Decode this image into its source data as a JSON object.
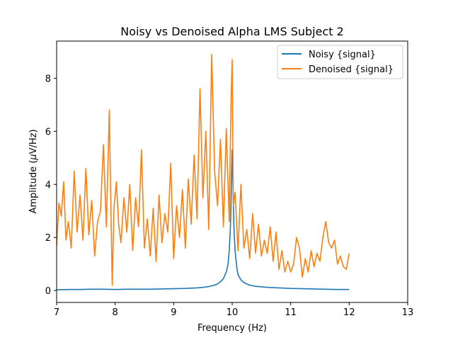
{
  "chart_data": {
    "type": "line",
    "title": "Noisy vs Denoised Alpha LMS Subject 2",
    "xlabel": "Frequency (Hz)",
    "ylabel_prefix": "Amplitude (",
    "ylabel_mu": "μ",
    "ylabel_suffix": "V/Hz)",
    "xlim": [
      7,
      13
    ],
    "ylim": [
      -0.45,
      9.4
    ],
    "xticks": [
      "7",
      "8",
      "9",
      "10",
      "11",
      "12",
      "13"
    ],
    "yticks": [
      "0",
      "2",
      "4",
      "6",
      "8"
    ],
    "legend_position": "upper-right",
    "grid": false,
    "series": [
      {
        "name": "Noisy {signal}",
        "color": "#1f77b4",
        "x": [
          7.0,
          7.2,
          7.4,
          7.6,
          7.8,
          8.0,
          8.2,
          8.4,
          8.6,
          8.8,
          9.0,
          9.2,
          9.4,
          9.5,
          9.6,
          9.7,
          9.75,
          9.8,
          9.85,
          9.9,
          9.93,
          9.95,
          9.97,
          9.98,
          9.99,
          10.0,
          10.01,
          10.02,
          10.03,
          10.05,
          10.08,
          10.1,
          10.15,
          10.2,
          10.3,
          10.4,
          10.6,
          10.8,
          11.0,
          11.2,
          11.4,
          11.6,
          11.8,
          12.0
        ],
        "values": [
          0.03,
          0.04,
          0.04,
          0.05,
          0.05,
          0.04,
          0.05,
          0.05,
          0.05,
          0.06,
          0.07,
          0.08,
          0.1,
          0.12,
          0.15,
          0.2,
          0.25,
          0.33,
          0.45,
          0.7,
          1.0,
          1.5,
          2.4,
          3.3,
          4.3,
          5.3,
          4.3,
          3.3,
          2.4,
          1.5,
          0.85,
          0.6,
          0.4,
          0.3,
          0.2,
          0.16,
          0.12,
          0.1,
          0.08,
          0.07,
          0.06,
          0.05,
          0.04,
          0.04
        ]
      },
      {
        "name": "Denoised {signal}",
        "color": "#ff7f0e",
        "x": [
          7.0,
          7.04,
          7.08,
          7.12,
          7.16,
          7.2,
          7.25,
          7.3,
          7.35,
          7.4,
          7.45,
          7.5,
          7.55,
          7.6,
          7.65,
          7.7,
          7.75,
          7.8,
          7.85,
          7.9,
          7.95,
          7.98,
          8.02,
          8.06,
          8.1,
          8.15,
          8.2,
          8.25,
          8.3,
          8.35,
          8.4,
          8.45,
          8.5,
          8.55,
          8.6,
          8.65,
          8.7,
          8.75,
          8.8,
          8.85,
          8.9,
          8.95,
          9.0,
          9.05,
          9.1,
          9.15,
          9.2,
          9.25,
          9.3,
          9.35,
          9.4,
          9.45,
          9.5,
          9.55,
          9.6,
          9.65,
          9.7,
          9.75,
          9.8,
          9.85,
          9.9,
          9.95,
          9.98,
          10.0,
          10.02,
          10.05,
          10.1,
          10.15,
          10.2,
          10.25,
          10.3,
          10.35,
          10.4,
          10.45,
          10.5,
          10.55,
          10.6,
          10.65,
          10.7,
          10.75,
          10.8,
          10.85,
          10.9,
          10.95,
          11.0,
          11.05,
          11.1,
          11.15,
          11.2,
          11.25,
          11.3,
          11.35,
          11.4,
          11.45,
          11.5,
          11.55,
          11.6,
          11.65,
          11.7,
          11.75,
          11.8,
          11.85,
          11.9,
          11.95,
          12.0
        ],
        "values": [
          1.7,
          3.3,
          2.8,
          4.1,
          1.9,
          2.6,
          1.6,
          4.5,
          2.2,
          3.6,
          1.9,
          4.6,
          2.1,
          3.4,
          1.3,
          2.6,
          3.0,
          5.5,
          2.4,
          6.8,
          0.2,
          3.1,
          4.1,
          2.5,
          1.8,
          3.5,
          2.2,
          4.0,
          1.5,
          3.5,
          2.4,
          5.3,
          1.6,
          2.7,
          1.3,
          3.1,
          1.1,
          3.6,
          1.8,
          2.9,
          2.2,
          4.8,
          1.2,
          3.2,
          2.0,
          3.8,
          1.6,
          4.2,
          2.5,
          5.1,
          2.7,
          7.6,
          3.5,
          6.0,
          2.3,
          8.9,
          4.5,
          3.2,
          5.7,
          2.4,
          6.1,
          2.6,
          7.0,
          8.7,
          3.2,
          3.7,
          1.5,
          4.0,
          1.6,
          2.3,
          1.2,
          2.9,
          1.4,
          2.5,
          1.3,
          1.9,
          1.4,
          2.4,
          1.1,
          2.2,
          0.8,
          1.5,
          0.7,
          1.1,
          0.7,
          1.0,
          2.0,
          1.6,
          0.5,
          1.2,
          0.7,
          1.5,
          0.9,
          1.4,
          1.1,
          2.0,
          2.6,
          1.8,
          1.6,
          1.9,
          1.0,
          1.3,
          0.9,
          0.8,
          1.4
        ]
      }
    ]
  }
}
